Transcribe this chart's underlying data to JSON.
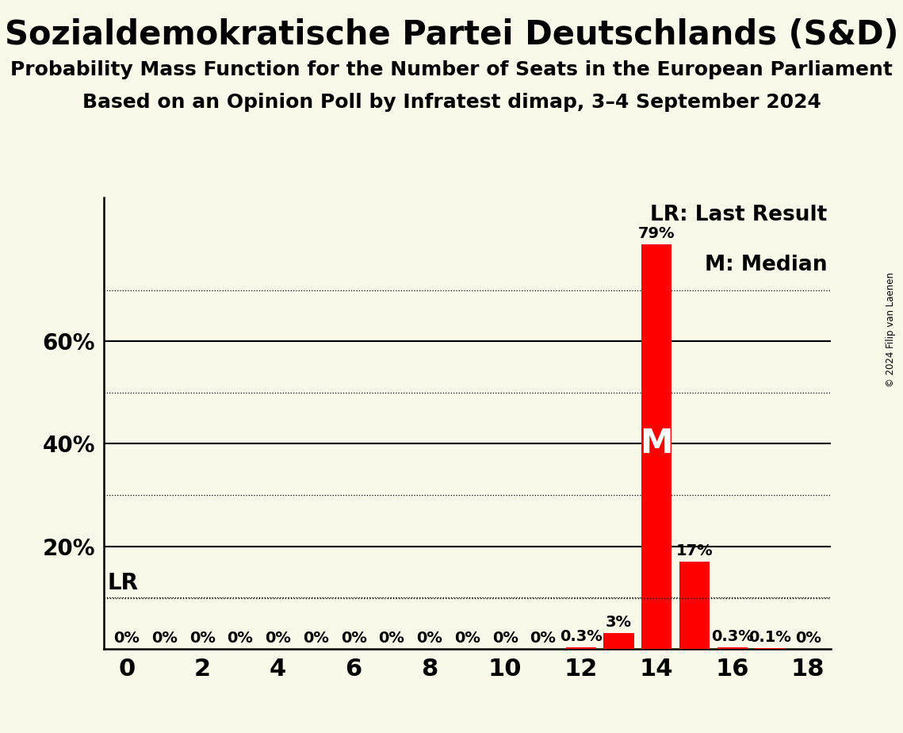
{
  "title": "Sozialdemokratische Partei Deutschlands (S&D)",
  "subtitle1": "Probability Mass Function for the Number of Seats in the European Parliament",
  "subtitle2": "Based on an Opinion Poll by Infratest dimap, 3–4 September 2024",
  "copyright": "© 2024 Filip van Laenen",
  "seats": [
    0,
    1,
    2,
    3,
    4,
    5,
    6,
    7,
    8,
    9,
    10,
    11,
    12,
    13,
    14,
    15,
    16,
    17,
    18
  ],
  "probabilities": [
    0.0,
    0.0,
    0.0,
    0.0,
    0.0,
    0.0,
    0.0,
    0.0,
    0.0,
    0.0,
    0.0,
    0.0,
    0.3,
    3.0,
    79.0,
    17.0,
    0.3,
    0.1,
    0.0
  ],
  "bar_color": "#ff0000",
  "background_color": "#faf8e8",
  "median_seat": 14,
  "lr_value": 9.8,
  "xlim": [
    -0.6,
    18.6
  ],
  "ylim": [
    0,
    88
  ],
  "solid_grid_values": [
    20,
    40,
    60
  ],
  "dotted_grid_values": [
    10,
    30,
    50,
    70
  ],
  "xticks": [
    0,
    2,
    4,
    6,
    8,
    10,
    12,
    14,
    16,
    18
  ],
  "yticks": [
    20,
    40,
    60
  ],
  "ytick_labels": [
    "20%",
    "40%",
    "60%"
  ],
  "legend_lr": "LR: Last Result",
  "legend_m": "M: Median",
  "lr_label": "LR",
  "title_fontsize": 30,
  "subtitle1_fontsize": 18,
  "subtitle2_fontsize": 18,
  "tick_fontsize": 22,
  "bar_label_fontsize": 14,
  "legend_fontsize": 19,
  "lr_label_fontsize": 20,
  "m_label_fontsize": 30,
  "ytick_fontsize": 20
}
